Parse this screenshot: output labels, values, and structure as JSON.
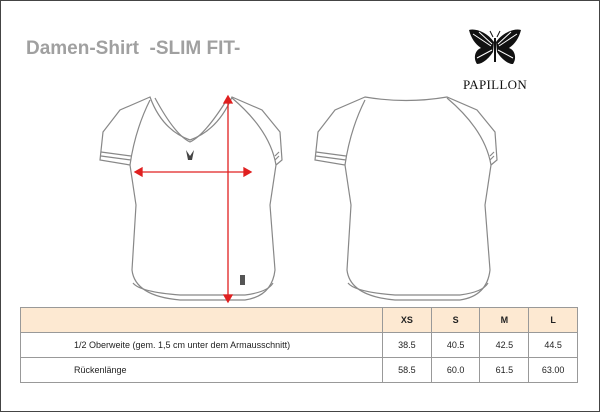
{
  "title": "Damen-Shirt  -SLIM FIT-",
  "brand": {
    "name": "PAPILLON",
    "icon": "butterfly-icon"
  },
  "colors": {
    "title": "#a0a0a0",
    "header_bg": "#fde9d2",
    "measure_arrow": "#e02020"
  },
  "table": {
    "sizes": [
      "XS",
      "S",
      "M",
      "L"
    ],
    "rows": [
      {
        "label": "1/2 Oberweite (gem. 1,5 cm unter dem Armausschnitt)",
        "values": [
          "38.5",
          "40.5",
          "42.5",
          "44.5"
        ]
      },
      {
        "label": "Rückenlänge",
        "values": [
          "58.5",
          "60.0",
          "61.5",
          "63.00"
        ]
      }
    ]
  }
}
